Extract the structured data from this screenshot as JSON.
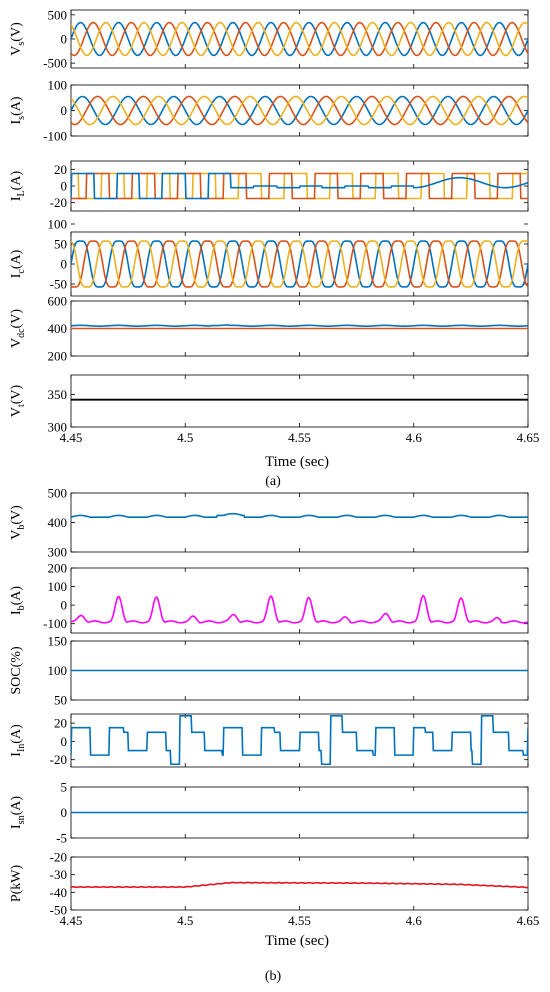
{
  "figure_labels": {
    "a": "(a)",
    "b": "(b)"
  },
  "x_axis": {
    "label": "Time (sec)",
    "ticks": [
      "4.45",
      "4.5",
      "4.55",
      "4.6",
      "4.65"
    ]
  },
  "colors": {
    "phase_a": "#0072BD",
    "phase_b": "#D95319",
    "phase_c": "#EDB120",
    "magenta": "#FF00FF",
    "red": "#E8121B",
    "black": "#000000"
  },
  "chart_data": [
    {
      "type": "line",
      "panel": "a",
      "ylabel_main": "V",
      "ylabel_sub": "s",
      "ylabel_unit": "(V)",
      "yticks": [
        "500",
        "0",
        "-500"
      ],
      "ylim": [
        -600,
        600
      ],
      "xlim": [
        4.45,
        4.65
      ],
      "series": [
        {
          "values_desc": "three-phase sine",
          "amplitude": 340,
          "cycles": 12,
          "phase_deg": [
            0,
            -120,
            120
          ]
        }
      ]
    },
    {
      "type": "line",
      "panel": "a",
      "ylabel_main": "I",
      "ylabel_sub": "s",
      "ylabel_unit": "(A)",
      "yticks": [
        "100",
        "0",
        "-100"
      ],
      "ylim": [
        -100,
        100
      ],
      "xlim": [
        4.45,
        4.65
      ],
      "series": [
        {
          "values_desc": "three-phase sine",
          "amplitude": 55,
          "cycles": 10,
          "phase_deg": [
            0,
            -120,
            120
          ]
        }
      ]
    },
    {
      "type": "line",
      "panel": "a",
      "ylabel_main": "I",
      "ylabel_sub": "L",
      "ylabel_unit": "(A)",
      "yticks": [
        "20",
        "0",
        "-20"
      ],
      "ylim": [
        -30,
        30
      ],
      "xlim": [
        4.45,
        4.65
      ],
      "series": [
        {
          "values_desc": "three-phase square",
          "amplitude": 15,
          "cycles": 10
        }
      ]
    },
    {
      "type": "line",
      "panel": "a",
      "ylabel_main": "I",
      "ylabel_sub": "c",
      "ylabel_unit": "(A)",
      "yticks": [
        "100",
        "50",
        "0",
        "-50"
      ],
      "ylim": [
        -80,
        80
      ],
      "xlim": [
        4.45,
        4.65
      ],
      "series": [
        {
          "values_desc": "three-phase distorted sine",
          "amplitude": 65,
          "cycles": 12,
          "phase_deg": [
            0,
            -120,
            120
          ]
        }
      ]
    },
    {
      "type": "line",
      "panel": "a",
      "ylabel_main": "V",
      "ylabel_sub": "dc",
      "ylabel_unit": "(V)",
      "yticks": [
        "600",
        "400",
        "200"
      ],
      "ylim": [
        200,
        600
      ],
      "xlim": [
        4.45,
        4.65
      ],
      "series": [
        {
          "name": "",
          "level": 420,
          "ripple": 5
        },
        {
          "name": "",
          "level": 400,
          "ripple": 0
        }
      ]
    },
    {
      "type": "line",
      "panel": "a",
      "ylabel_main": "V",
      "ylabel_sub": "t",
      "ylabel_unit": "(V)",
      "yticks": [
        "350",
        "300"
      ],
      "ylim": [
        300,
        380
      ],
      "xlim": [
        4.45,
        4.65
      ],
      "series": [
        {
          "level": 342
        }
      ]
    },
    {
      "type": "line",
      "panel": "b",
      "ylabel_main": "V",
      "ylabel_sub": "b",
      "ylabel_unit": "(V)",
      "yticks": [
        "500",
        "400",
        "300"
      ],
      "ylim": [
        300,
        500
      ],
      "xlim": [
        4.45,
        4.65
      ],
      "series": [
        {
          "level": 420,
          "ripple": 6
        }
      ]
    },
    {
      "type": "line",
      "panel": "b",
      "ylabel_main": "I",
      "ylabel_sub": "b",
      "ylabel_unit": "(A)",
      "yticks": [
        "200",
        "100",
        "0",
        "-100"
      ],
      "ylim": [
        -150,
        200
      ],
      "xlim": [
        4.45,
        4.65
      ],
      "series": [
        {
          "values_desc": "pulsating current",
          "base": -90,
          "peak": 60
        }
      ]
    },
    {
      "type": "line",
      "panel": "b",
      "ylabel_main": "SOC(%)",
      "ylabel_sub": "",
      "ylabel_unit": "",
      "yticks": [
        "150",
        "100",
        "50"
      ],
      "ylim": [
        50,
        150
      ],
      "xlim": [
        4.45,
        4.65
      ],
      "series": [
        {
          "level": 100
        }
      ]
    },
    {
      "type": "line",
      "panel": "b",
      "ylabel_main": "I",
      "ylabel_sub": "In",
      "ylabel_unit": "(A)",
      "yticks": [
        "20",
        "0",
        "-20"
      ],
      "ylim": [
        -28,
        30
      ],
      "xlim": [
        4.45,
        4.65
      ],
      "series": [
        {
          "values_desc": "stepped square wave",
          "amplitude": 15
        }
      ]
    },
    {
      "type": "line",
      "panel": "b",
      "ylabel_main": "I",
      "ylabel_sub": "sn",
      "ylabel_unit": "(A)",
      "yticks": [
        "5",
        "0",
        "-5"
      ],
      "ylim": [
        -5,
        5
      ],
      "xlim": [
        4.45,
        4.65
      ],
      "series": [
        {
          "level": 0
        }
      ]
    },
    {
      "type": "line",
      "panel": "b",
      "ylabel_main": "P",
      "ylabel_sub": "",
      "ylabel_unit": "(kW)",
      "yticks": [
        "-20",
        "-30",
        "-40",
        "-50"
      ],
      "ylim": [
        -50,
        -20
      ],
      "xlim": [
        4.45,
        4.65
      ],
      "series": [
        {
          "values_desc": "slowly varying power",
          "points": [
            [
              4.45,
              -37
            ],
            [
              4.5,
              -37
            ],
            [
              4.52,
              -34.5
            ],
            [
              4.58,
              -34.8
            ],
            [
              4.62,
              -35.5
            ],
            [
              4.65,
              -37.2
            ]
          ]
        }
      ]
    }
  ]
}
